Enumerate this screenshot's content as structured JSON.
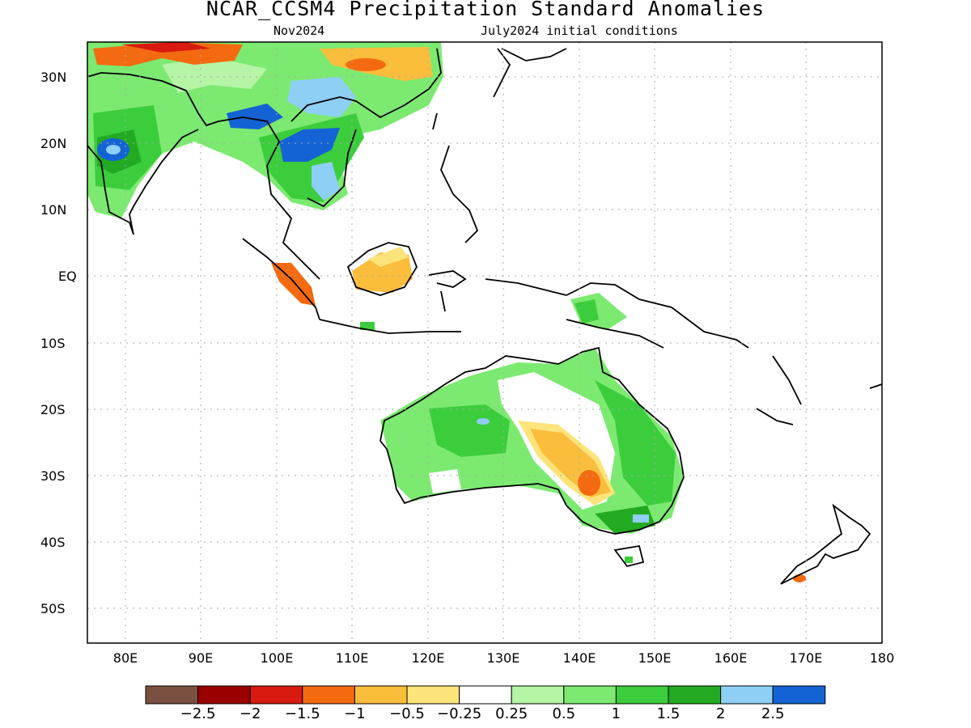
{
  "title": "NCAR_CCSM4 Precipitation Standard Anomalies",
  "subtitle_left": "Nov2024",
  "subtitle_right": "July2024 initial conditions",
  "lat_labels": [
    "30N",
    "20N",
    "10N",
    "EQ",
    "10S",
    "20S",
    "30S",
    "40S",
    "50S"
  ],
  "lon_labels": [
    "80E",
    "90E",
    "100E",
    "110E",
    "120E",
    "130E",
    "140E",
    "150E",
    "160E",
    "170E",
    "180"
  ],
  "colorbar": {
    "colors": [
      "#7a5040",
      "#9b0000",
      "#d81a10",
      "#f46a10",
      "#fbbd3c",
      "#fde47a",
      "#ffffff",
      "#b6f4a6",
      "#7cea70",
      "#3ccd3c",
      "#22ab22",
      "#8ecff6",
      "#1463d4"
    ],
    "labels": [
      "−2.5",
      "−2",
      "−1.5",
      "−1",
      "−0.5",
      "−0.25",
      "0.25",
      "0.5",
      "1",
      "1.5",
      "2",
      "2.5"
    ]
  },
  "map_extent": {
    "lon": [
      75,
      180
    ],
    "lat": [
      -55,
      35
    ]
  },
  "notable_anomalies": [
    {
      "region": "Indochina",
      "level": "2.5"
    },
    {
      "region": "Central India",
      "level": "2.5"
    },
    {
      "region": "Sumatra",
      "level": "-1"
    },
    {
      "region": "Borneo",
      "level": "-0.5"
    },
    {
      "region": "SE Australia interior",
      "level": "-1"
    },
    {
      "region": "South Island NZ",
      "level": "-1"
    }
  ]
}
